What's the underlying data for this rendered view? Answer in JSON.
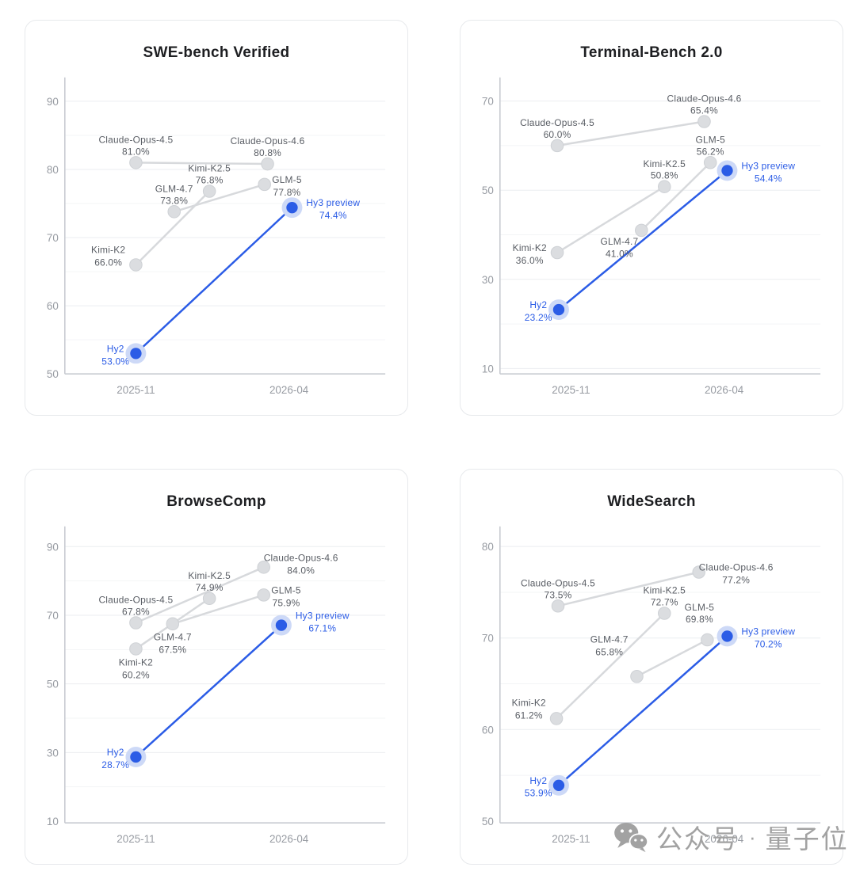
{
  "watermark": {
    "icon": "wechat-icon",
    "platform_label": "公众号",
    "separator": "·",
    "account_name": "量子位"
  },
  "colors": {
    "accent_blue": "#2b5ce6",
    "halo_blue": "#cdd9f7",
    "gray_line": "#d7d9dc",
    "gray_dot": "#dbdde0",
    "gray_label": "#595d64",
    "tick_text": "#979ba2",
    "grid_major": "#ebedf0",
    "grid_minor": "#f3f4f6"
  },
  "chart_data": [
    {
      "type": "line",
      "title": "SWE-bench Verified",
      "x_tick_labels": [
        "2025-11",
        "2026-04"
      ],
      "y_ticks": [
        90,
        80,
        70,
        60,
        50
      ],
      "minor_ticks": [
        85,
        75,
        65,
        55
      ],
      "ylim": [
        50,
        93.5
      ],
      "grid": true,
      "legend": "none",
      "series": [
        {
          "name": "Claude",
          "style": "gray",
          "points": [
            {
              "model": "Claude-Opus-4.5",
              "score": 81.0,
              "score_label": "81.0%",
              "x": 0,
              "label_pos": "above"
            },
            {
              "model": "Claude-Opus-4.6",
              "score": 80.8,
              "score_label": "80.8%",
              "x": 0.86,
              "label_pos": "above"
            }
          ]
        },
        {
          "name": "Kimi",
          "style": "gray",
          "points": [
            {
              "model": "Kimi-K2",
              "score": 66.0,
              "score_label": "66.0%",
              "x": 0,
              "label_pos": "left",
              "dy": -13
            },
            {
              "model": "Kimi-K2.5",
              "score": 76.8,
              "score_label": "76.8%",
              "x": 0.48,
              "label_pos": "above"
            }
          ]
        },
        {
          "name": "GLM",
          "style": "gray",
          "points": [
            {
              "model": "GLM-4.7",
              "score": 73.8,
              "score_label": "73.8%",
              "x": 0.25,
              "label_pos": "above"
            },
            {
              "model": "GLM-5",
              "score": 77.8,
              "score_label": "77.8%",
              "x": 0.84,
              "label_pos": "right"
            }
          ]
        },
        {
          "name": "Hy",
          "style": "blue",
          "points": [
            {
              "model": "Hy2",
              "score": 53.0,
              "score_label": "53.0%",
              "x": 0,
              "label_pos": "left"
            },
            {
              "model": "Hy3 preview",
              "score": 74.4,
              "score_label": "74.4%",
              "x": 1.02,
              "label_pos": "right"
            }
          ]
        }
      ]
    },
    {
      "type": "line",
      "title": "Terminal-Bench 2.0",
      "x_tick_labels": [
        "2025-11",
        "2026-04"
      ],
      "y_ticks": [
        70,
        50,
        30,
        10
      ],
      "minor_ticks": [
        60,
        40,
        20
      ],
      "ylim": [
        8.8,
        75.3
      ],
      "grid": true,
      "legend": "none",
      "series": [
        {
          "name": "Claude",
          "style": "gray",
          "points": [
            {
              "model": "Claude-Opus-4.5",
              "score": 60.0,
              "score_label": "60.0%",
              "x": -0.09,
              "label_pos": "above"
            },
            {
              "model": "Claude-Opus-4.6",
              "score": 65.4,
              "score_label": "65.4%",
              "x": 0.87,
              "label_pos": "above"
            }
          ]
        },
        {
          "name": "Kimi",
          "style": "gray",
          "points": [
            {
              "model": "Kimi-K2",
              "score": 36.0,
              "score_label": "36.0%",
              "x": -0.09,
              "label_pos": "left"
            },
            {
              "model": "Kimi-K2.5",
              "score": 50.8,
              "score_label": "50.8%",
              "x": 0.61,
              "label_pos": "above"
            }
          ]
        },
        {
          "name": "GLM",
          "style": "gray",
          "points": [
            {
              "model": "GLM-4.7",
              "score": 41.0,
              "score_label": "41.0%",
              "x": 0.46,
              "label_pos": "below",
              "dx": -28,
              "dy": -3
            },
            {
              "model": "GLM-5",
              "score": 56.2,
              "score_label": "56.2%",
              "x": 0.91,
              "label_pos": "above"
            }
          ]
        },
        {
          "name": "Hy",
          "style": "blue",
          "points": [
            {
              "model": "Hy2",
              "score": 23.2,
              "score_label": "23.2%",
              "x": -0.08,
              "label_pos": "left"
            },
            {
              "model": "Hy3 preview",
              "score": 54.4,
              "score_label": "54.4%",
              "x": 1.02,
              "label_pos": "right"
            }
          ]
        }
      ]
    },
    {
      "type": "line",
      "title": "BrowseComp",
      "x_tick_labels": [
        "2025-11",
        "2026-04"
      ],
      "y_ticks": [
        90,
        70,
        50,
        30,
        10
      ],
      "minor_ticks": [
        80,
        60,
        40,
        20
      ],
      "ylim": [
        9.5,
        95.9
      ],
      "grid": true,
      "legend": "none",
      "series": [
        {
          "name": "Claude",
          "style": "gray",
          "points": [
            {
              "model": "Claude-Opus-4.5",
              "score": 67.8,
              "score_label": "67.8%",
              "x": 0,
              "label_pos": "above"
            },
            {
              "model": "Claude-Opus-4.6",
              "score": 84.0,
              "score_label": "84.0%",
              "x": 0.835,
              "label_pos": "right",
              "dx": -14,
              "dy": -6
            }
          ]
        },
        {
          "name": "Kimi",
          "style": "gray",
          "points": [
            {
              "model": "Kimi-K2",
              "score": 60.2,
              "score_label": "60.2%",
              "x": 0,
              "label_pos": "below"
            },
            {
              "model": "Kimi-K2.5",
              "score": 74.9,
              "score_label": "74.9%",
              "x": 0.48,
              "label_pos": "above"
            }
          ]
        },
        {
          "name": "GLM",
          "style": "gray",
          "points": [
            {
              "model": "GLM-4.7",
              "score": 67.5,
              "score_label": "67.5%",
              "x": 0.24,
              "label_pos": "below"
            },
            {
              "model": "GLM-5",
              "score": 75.9,
              "score_label": "75.9%",
              "x": 0.835,
              "label_pos": "right"
            }
          ]
        },
        {
          "name": "Hy",
          "style": "blue",
          "points": [
            {
              "model": "Hy2",
              "score": 28.7,
              "score_label": "28.7%",
              "x": 0,
              "label_pos": "left"
            },
            {
              "model": "Hy3 preview",
              "score": 67.1,
              "score_label": "67.1%",
              "x": 0.95,
              "label_pos": "right",
              "dy": -6
            }
          ]
        }
      ]
    },
    {
      "type": "line",
      "title": "WideSearch",
      "x_tick_labels": [
        "2025-11",
        "2026-04"
      ],
      "y_ticks": [
        80,
        70,
        60,
        50
      ],
      "minor_ticks": [
        75,
        65,
        55
      ],
      "ylim": [
        49.8,
        82.2
      ],
      "grid": true,
      "legend": "none",
      "series": [
        {
          "name": "Claude",
          "style": "gray",
          "points": [
            {
              "model": "Claude-Opus-4.5",
              "score": 73.5,
              "score_label": "73.5%",
              "x": -0.085,
              "label_pos": "above"
            },
            {
              "model": "Claude-Opus-4.6",
              "score": 77.2,
              "score_label": "77.2%",
              "x": 0.835,
              "label_pos": "right",
              "dx": -14
            }
          ]
        },
        {
          "name": "Kimi",
          "style": "gray",
          "points": [
            {
              "model": "Kimi-K2",
              "score": 61.2,
              "score_label": "61.2%",
              "x": -0.095,
              "label_pos": "left",
              "dy": -14
            },
            {
              "model": "Kimi-K2.5",
              "score": 72.7,
              "score_label": "72.7%",
              "x": 0.61,
              "label_pos": "above"
            }
          ]
        },
        {
          "name": "GLM",
          "style": "gray",
          "points": [
            {
              "model": "GLM-4.7",
              "score": 65.8,
              "score_label": "65.8%",
              "x": 0.43,
              "label_pos": "left",
              "dy": -41
            },
            {
              "model": "GLM-5",
              "score": 69.8,
              "score_label": "69.8%",
              "x": 0.89,
              "label_pos": "above",
              "dx": -10,
              "dy": -12
            }
          ]
        },
        {
          "name": "Hy",
          "style": "blue",
          "points": [
            {
              "model": "Hy2",
              "score": 53.9,
              "score_label": "53.9%",
              "x": -0.08,
              "label_pos": "left"
            },
            {
              "model": "Hy3 preview",
              "score": 70.2,
              "score_label": "70.2%",
              "x": 1.02,
              "label_pos": "right"
            }
          ]
        }
      ]
    }
  ]
}
